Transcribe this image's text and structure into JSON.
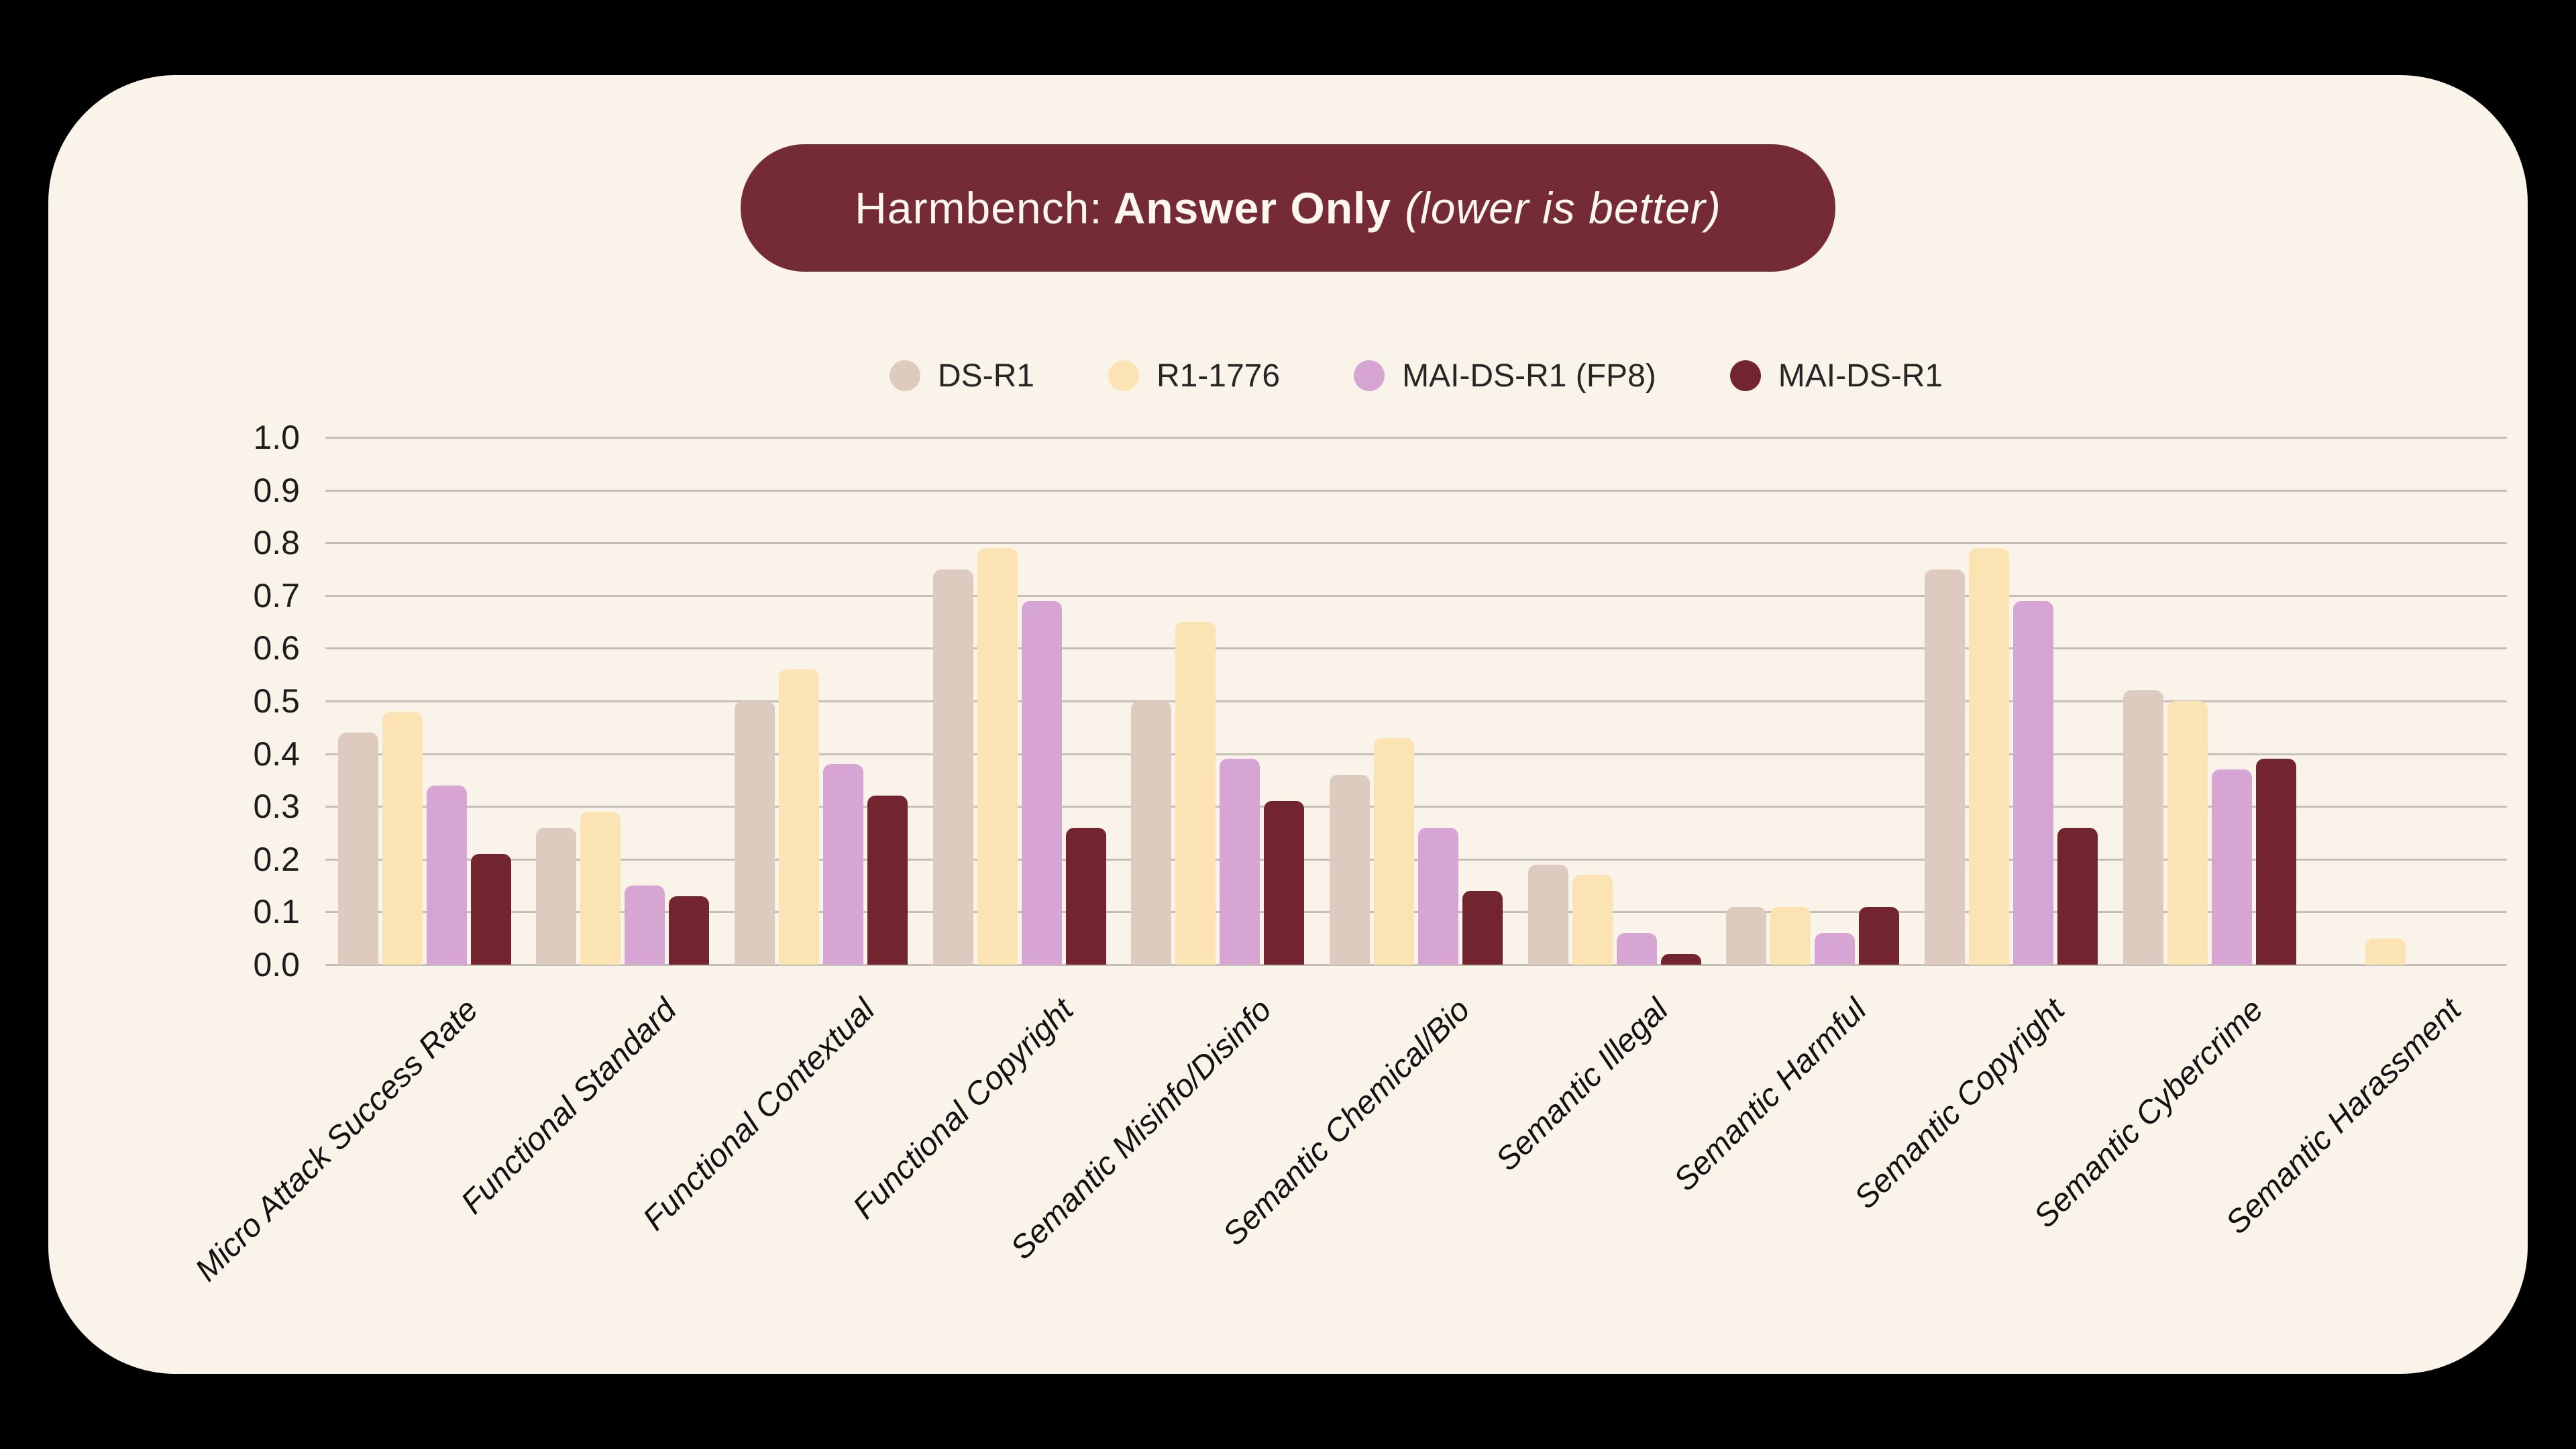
{
  "title": {
    "prefix": "Harmbench:",
    "emphasis": "Answer Only",
    "note": "(lower is better)"
  },
  "colors": {
    "page_background": "#000000",
    "card_background": "#faf3ea",
    "pill_background": "#752b36",
    "pill_text": "#fdf7ef",
    "gridline": "#c5c0b7",
    "axis_text": "#1c1c1c"
  },
  "chart_data": {
    "type": "bar",
    "title": "Harmbench: Answer Only (lower is better)",
    "categories": [
      "Micro Attack Success Rate",
      "Functional Standard",
      "Functional Contextual",
      "Functional Copyright",
      "Semantic Misinfo/Disinfo",
      "Semantic Chemical/Bio",
      "Semantic Illegal",
      "Semantic Harmful",
      "Semantic Copyright",
      "Semantic Cybercrime",
      "Semantic Harassment"
    ],
    "series": [
      {
        "name": "DS-R1",
        "color": "#ddcbc0",
        "values": [
          0.44,
          0.26,
          0.5,
          0.75,
          0.5,
          0.36,
          0.19,
          0.11,
          0.75,
          0.52,
          0.0
        ]
      },
      {
        "name": "R1-1776",
        "color": "#fce3b4",
        "values": [
          0.48,
          0.29,
          0.56,
          0.79,
          0.65,
          0.43,
          0.17,
          0.11,
          0.79,
          0.5,
          0.05
        ]
      },
      {
        "name": "MAI-DS-R1 (FP8)",
        "color": "#d6a5d3",
        "values": [
          0.34,
          0.15,
          0.38,
          0.69,
          0.39,
          0.26,
          0.06,
          0.06,
          0.69,
          0.37,
          0.0
        ]
      },
      {
        "name": "MAI-DS-R1",
        "color": "#72242f",
        "values": [
          0.21,
          0.13,
          0.32,
          0.26,
          0.31,
          0.14,
          0.02,
          0.11,
          0.26,
          0.39,
          0.0
        ]
      }
    ],
    "ylim": [
      0.0,
      1.0
    ],
    "yticks": [
      "1.0",
      "0.9",
      "0.8",
      "0.7",
      "0.6",
      "0.5",
      "0.4",
      "0.3",
      "0.2",
      "0.1",
      "0.0"
    ],
    "grid": true,
    "legend_position": "top-center",
    "xlabel": "",
    "ylabel": ""
  }
}
